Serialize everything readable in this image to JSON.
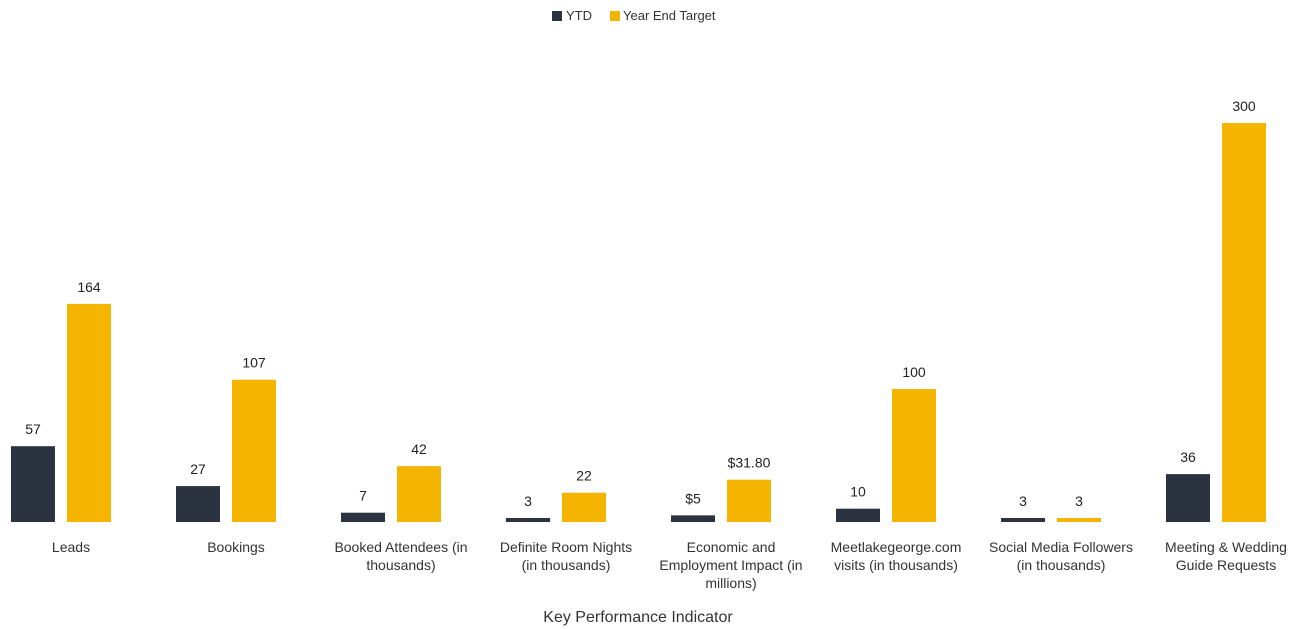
{
  "chart_data": {
    "type": "bar",
    "xlabel": "Key Performance Indicator",
    "ylabel": "",
    "legend_position": "top-center",
    "grid": false,
    "ylim": [
      0,
      300
    ],
    "categories": [
      [
        "Leads"
      ],
      [
        "Bookings"
      ],
      [
        "Booked Attendees (in",
        "thousands)"
      ],
      [
        "Definite Room Nights",
        "(in thousands)"
      ],
      [
        "Economic and",
        "Employment Impact (in",
        "millions)"
      ],
      [
        "Meetlakegeorge.com",
        "visits (in thousands)"
      ],
      [
        "Social Media Followers",
        "(in thousands)"
      ],
      [
        "Meeting & Wedding",
        "Guide Requests"
      ]
    ],
    "series": [
      {
        "name": "YTD",
        "color": "#2b3340",
        "values": [
          57,
          27,
          7,
          3,
          5,
          10,
          3,
          36
        ],
        "labels": [
          "57",
          "27",
          "7",
          "3",
          "$5",
          "10",
          "3",
          "36"
        ]
      },
      {
        "name": "Year End Target",
        "color": "#f5b400",
        "values": [
          164,
          107,
          42,
          22,
          31.8,
          100,
          3,
          300
        ],
        "labels": [
          "164",
          "107",
          "42",
          "22",
          "$31.80",
          "100",
          "3",
          "300"
        ]
      }
    ]
  }
}
